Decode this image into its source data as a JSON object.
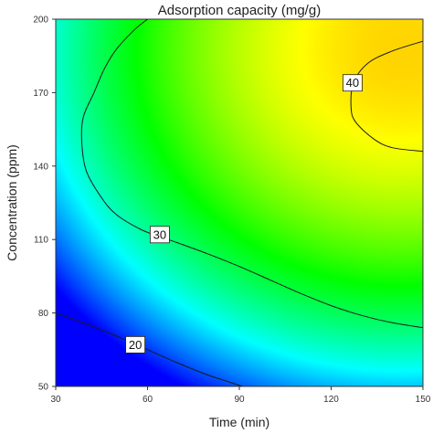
{
  "chart_data": {
    "type": "heatmap",
    "subtype": "contour",
    "title": "Adsorption capacity (mg/g)",
    "xlabel": "Time (min)",
    "ylabel": "Concentration (ppm)",
    "xlim": [
      30,
      150
    ],
    "ylim": [
      50,
      200
    ],
    "xticks": [
      30,
      60,
      90,
      120,
      150
    ],
    "yticks": [
      50,
      80,
      110,
      140,
      170,
      200
    ],
    "xtick_labels": [
      "30",
      "60",
      "90",
      "120",
      "150"
    ],
    "ytick_labels": [
      "50",
      "80",
      "110",
      "140",
      "170",
      "200"
    ],
    "color_scale": [
      "#0000ff",
      "#00ffff",
      "#00ff00",
      "#ffff00",
      "#ff0000"
    ],
    "contours": [
      {
        "level": 20,
        "label": "20",
        "label_at": [
          56,
          67
        ],
        "points": [
          [
            30,
            80
          ],
          [
            40,
            75.5
          ],
          [
            50,
            70.5
          ],
          [
            55.7,
            67.4
          ],
          [
            60,
            65
          ],
          [
            70,
            59.5
          ],
          [
            80,
            54.5
          ],
          [
            85,
            52.5
          ],
          [
            91,
            50
          ]
        ]
      },
      {
        "level": 30,
        "label": "30",
        "label_at": [
          64,
          112
        ],
        "points": [
          [
            150,
            74
          ],
          [
            140,
            76
          ],
          [
            130,
            79
          ],
          [
            120,
            83
          ],
          [
            110,
            88
          ],
          [
            100,
            93.5
          ],
          [
            90,
            99
          ],
          [
            80,
            104
          ],
          [
            70,
            108.6
          ],
          [
            64.4,
            111
          ],
          [
            58,
            114
          ],
          [
            50,
            120
          ],
          [
            45,
            127
          ],
          [
            40,
            138
          ],
          [
            38.5,
            150
          ],
          [
            39,
            160
          ],
          [
            42.5,
            170
          ],
          [
            46,
            180
          ],
          [
            50,
            188
          ],
          [
            56,
            196
          ],
          [
            60,
            200
          ]
        ]
      },
      {
        "level": 40,
        "label": "40",
        "label_at": [
          127,
          174
        ],
        "points": [
          [
            150,
            191
          ],
          [
            140,
            187
          ],
          [
            132,
            182
          ],
          [
            127.3,
            174
          ],
          [
            126.5,
            164
          ],
          [
            128,
            158
          ],
          [
            134,
            151
          ],
          [
            140,
            147.5
          ],
          [
            150,
            146
          ]
        ]
      }
    ]
  }
}
